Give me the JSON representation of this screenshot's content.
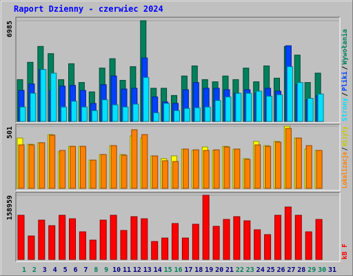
{
  "chart_data": [
    {
      "type": "bar",
      "title": "Raport Dzienny -  czerwiec 2024",
      "ylim": [
        0,
        6985
      ],
      "yticks": [
        6985
      ],
      "legend_separator": "/",
      "series": [
        {
          "name": "Strony",
          "color": "#00e0ff",
          "values": [
            1000,
            1950,
            3600,
            3350,
            1000,
            1400,
            1000,
            750,
            1500,
            1150,
            1000,
            1200,
            3050,
            600,
            1250,
            750,
            900,
            950,
            1000,
            1450,
            1700,
            1950,
            1950,
            2100,
            1750,
            1850,
            3800,
            2700,
            1600,
            1900,
            0
          ]
        },
        {
          "name": "Pliki",
          "color": "#0040ff",
          "values": [
            2150,
            2600,
            3600,
            2150,
            2450,
            2500,
            2150,
            1250,
            2550,
            3150,
            2250,
            2300,
            4400,
            1700,
            1350,
            1250,
            2200,
            2700,
            2300,
            2300,
            2200,
            1950,
            2200,
            1950,
            2300,
            2100,
            5250,
            2550,
            1500,
            1800,
            0
          ]
        },
        {
          "name": "Wywołania",
          "color": "#00805c",
          "values": [
            2900,
            4100,
            5200,
            4700,
            2900,
            4000,
            2700,
            2050,
            3700,
            4350,
            2850,
            3800,
            6985,
            2300,
            2300,
            1800,
            3150,
            3850,
            2900,
            2750,
            3150,
            2900,
            3700,
            2750,
            3850,
            3000,
            5200,
            4600,
            2700,
            3350,
            0
          ]
        }
      ]
    },
    {
      "type": "bar",
      "ylim": [
        0,
        501
      ],
      "yticks": [
        501
      ],
      "legend_separator": "/",
      "series": [
        {
          "name": "Lokalizacje",
          "color": "#ff8000",
          "values": [
            351,
            351,
            368,
            429,
            306,
            339,
            339,
            228,
            273,
            345,
            267,
            473,
            434,
            262,
            223,
            217,
            317,
            311,
            306,
            311,
            334,
            317,
            234,
            351,
            339,
            373,
            484,
            406,
            345,
            306,
            0
          ]
        },
        {
          "name": "Wizyty",
          "color": "#ffff00",
          "values": [
            406,
            356,
            368,
            434,
            295,
            339,
            339,
            228,
            273,
            345,
            273,
            423,
            406,
            262,
            240,
            262,
            317,
            306,
            334,
            306,
            339,
            317,
            240,
            379,
            345,
            379,
            501,
            406,
            317,
            306,
            0
          ]
        }
      ]
    },
    {
      "type": "bar",
      "ylim": [
        0,
        158959
      ],
      "yticks": [
        158959
      ],
      "categories": [
        "1",
        "2",
        "3",
        "4",
        "5",
        "6",
        "7",
        "8",
        "9",
        "10",
        "11",
        "12",
        "13",
        "14",
        "15",
        "16",
        "17",
        "18",
        "19",
        "20",
        "21",
        "22",
        "23",
        "24",
        "25",
        "26",
        "27",
        "28",
        "29",
        "30",
        "31"
      ],
      "category_colors": [
        "#00805c",
        "#00805c",
        "#000080",
        "#000080",
        "#000080",
        "#000080",
        "#000080",
        "#00805c",
        "#00805c",
        "#000080",
        "#000080",
        "#000080",
        "#000080",
        "#000080",
        "#00805c",
        "#00805c",
        "#000080",
        "#000080",
        "#000080",
        "#000080",
        "#000080",
        "#00805c",
        "#00805c",
        "#000080",
        "#000080",
        "#000080",
        "#000080",
        "#000080",
        "#00805c",
        "#00805c",
        "#000080"
      ],
      "series": [
        {
          "name": "kB F",
          "color": "#ff0000",
          "values": [
            109400,
            58100,
            97400,
            83700,
            109400,
            100800,
            68400,
            47900,
            97400,
            109400,
            71800,
            106000,
            100800,
            44400,
            53000,
            88900,
            53000,
            87200,
            158959,
            82000,
            99100,
            106000,
            95700,
            73500,
            61500,
            109400,
            129900,
            109400,
            68400,
            99100,
            0
          ]
        }
      ]
    }
  ]
}
